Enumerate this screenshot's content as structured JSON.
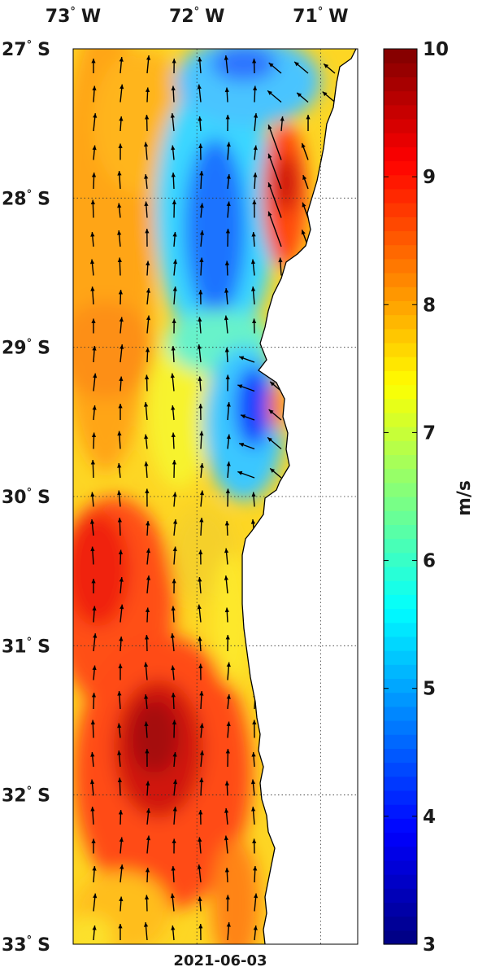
{
  "map": {
    "date": "2021-06-03",
    "region": {
      "lon": [
        -73,
        -70.7
      ],
      "lat": [
        -33,
        -27
      ]
    },
    "lon_ticks": [
      {
        "value": -73,
        "deg": "73",
        "hemi": "W"
      },
      {
        "value": -72,
        "deg": "72",
        "hemi": "W"
      },
      {
        "value": -71,
        "deg": "71",
        "hemi": "W"
      }
    ],
    "lat_ticks": [
      {
        "value": -27,
        "deg": "27",
        "hemi": "S"
      },
      {
        "value": -28,
        "deg": "28",
        "hemi": "S"
      },
      {
        "value": -29,
        "deg": "29",
        "hemi": "S"
      },
      {
        "value": -30,
        "deg": "30",
        "hemi": "S"
      },
      {
        "value": -31,
        "deg": "31",
        "hemi": "S"
      },
      {
        "value": -32,
        "deg": "32",
        "hemi": "S"
      },
      {
        "value": -33,
        "deg": "33",
        "hemi": "S"
      }
    ],
    "grid": "dotted",
    "land_color": "#ffffff",
    "field": "wind speed",
    "arrows": "wind vectors"
  },
  "colorbar": {
    "unit": "m/s",
    "min": 3,
    "max": 10,
    "ticks": [
      "3",
      "4",
      "5",
      "6",
      "7",
      "8",
      "9",
      "10"
    ],
    "colormap": "jet"
  }
}
